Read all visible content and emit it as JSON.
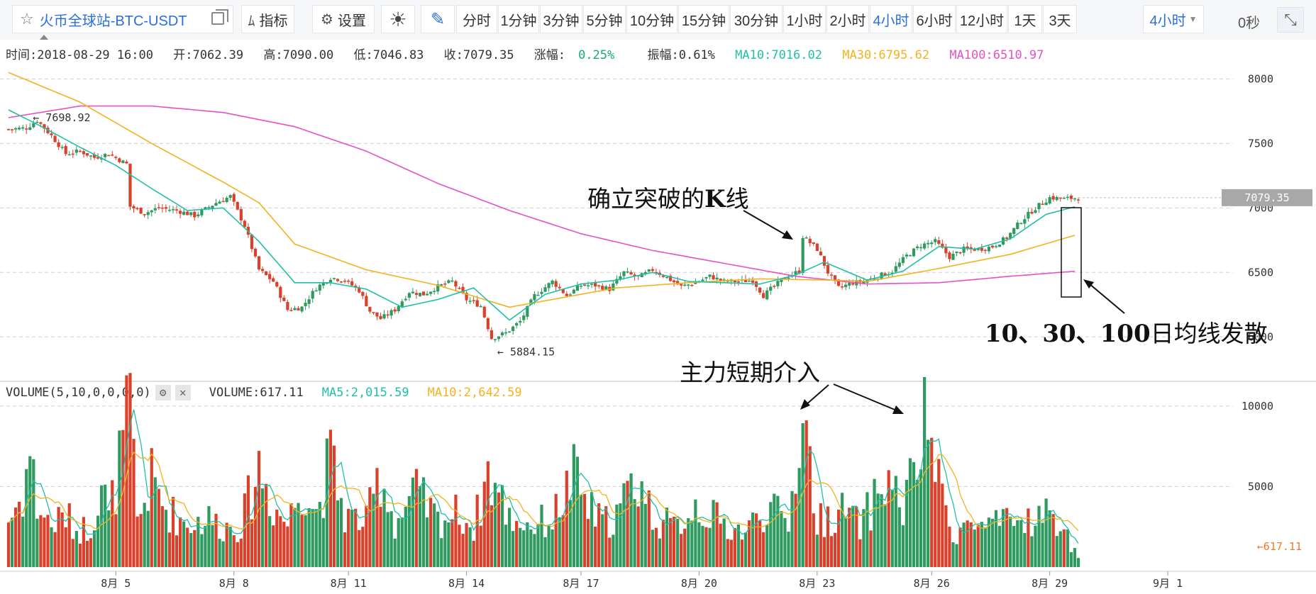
{
  "toolbar": {
    "symbol": "火币全球站-BTC-USDT",
    "indicator_label": "指标",
    "settings_label": "设置",
    "intervals": [
      "分时",
      "1分钟",
      "3分钟",
      "5分钟",
      "10分钟",
      "15分钟",
      "30分钟",
      "1小时",
      "2小时",
      "4小时",
      "6小时",
      "12小时",
      "1天",
      "3天"
    ],
    "active_interval": "4小时",
    "interval_select": "4小时",
    "countdown": "0秒"
  },
  "info": {
    "time": "时间:2018-08-29 16:00",
    "open": "开:7062.39",
    "high": "高:7090.00",
    "low": "低:7046.83",
    "close": "收:7079.35",
    "change_label": "涨幅:",
    "change_value": "0.25%",
    "amplitude": "振幅:0.61%",
    "ma10": "MA10:7016.02",
    "ma30": "MA30:6795.62",
    "ma100": "MA100:6510.97"
  },
  "volume_info": {
    "title": "VOLUME(5,10,0,0,0,0)",
    "volume": "VOLUME:617.11",
    "ma5": "MA5:2,015.59",
    "ma10": "MA10:2,642.59"
  },
  "colors": {
    "up": "#2e9a5f",
    "down": "#d9412b",
    "ma10": "#20c0a8",
    "ma30": "#f4b21f",
    "ma100": "#e452c7",
    "accent": "#2a6fdb"
  },
  "chart_data": {
    "type": "candlestick",
    "price_axis": {
      "ticks": [
        "8000",
        "7500",
        "7000",
        "6500",
        "6000"
      ],
      "ylim": [
        5820,
        8090
      ]
    },
    "volume_axis": {
      "ticks": [
        "10000",
        "5000"
      ],
      "ylim": [
        0,
        10300
      ]
    },
    "x_ticks": [
      "8月 5",
      "8月 8",
      "8月 11",
      "8月 14",
      "8月 17",
      "8月 20",
      "8月 23",
      "8月 26",
      "8月 29",
      "9月 1"
    ],
    "current_price_label": "7079.35",
    "current_volume_label": "617.11",
    "max_label": "7698.92",
    "min_label": "5884.15",
    "annotations": [
      {
        "text_prefix": "确立突破的",
        "text_bold": "K",
        "text_suffix": "线"
      },
      {
        "text": "主力短期介入"
      },
      {
        "text_bold": "10、30、100",
        "text_suffix": "日均线发散"
      }
    ],
    "price_control_points": [
      [
        0,
        7610
      ],
      [
        5,
        7620
      ],
      [
        8,
        7680
      ],
      [
        12,
        7560
      ],
      [
        16,
        7420
      ],
      [
        20,
        7440
      ],
      [
        24,
        7390
      ],
      [
        28,
        7420
      ],
      [
        33,
        7340
      ],
      [
        34,
        7010
      ],
      [
        38,
        6960
      ],
      [
        42,
        7000
      ],
      [
        47,
        6980
      ],
      [
        52,
        6940
      ],
      [
        58,
        7040
      ],
      [
        62,
        7090
      ],
      [
        66,
        6860
      ],
      [
        70,
        6520
      ],
      [
        74,
        6430
      ],
      [
        78,
        6210
      ],
      [
        82,
        6230
      ],
      [
        86,
        6380
      ],
      [
        90,
        6460
      ],
      [
        94,
        6440
      ],
      [
        98,
        6360
      ],
      [
        101,
        6200
      ],
      [
        104,
        6140
      ],
      [
        108,
        6210
      ],
      [
        112,
        6350
      ],
      [
        116,
        6330
      ],
      [
        120,
        6390
      ],
      [
        124,
        6430
      ],
      [
        128,
        6290
      ],
      [
        132,
        6240
      ],
      [
        135,
        5990
      ],
      [
        139,
        6030
      ],
      [
        143,
        6120
      ],
      [
        147,
        6320
      ],
      [
        152,
        6430
      ],
      [
        156,
        6320
      ],
      [
        160,
        6400
      ],
      [
        164,
        6400
      ],
      [
        168,
        6370
      ],
      [
        172,
        6500
      ],
      [
        176,
        6460
      ],
      [
        180,
        6520
      ],
      [
        184,
        6460
      ],
      [
        188,
        6390
      ],
      [
        192,
        6420
      ],
      [
        196,
        6470
      ],
      [
        200,
        6430
      ],
      [
        204,
        6430
      ],
      [
        208,
        6440
      ],
      [
        211,
        6320
      ],
      [
        213,
        6370
      ],
      [
        217,
        6460
      ],
      [
        221,
        6510
      ],
      [
        222,
        6780
      ],
      [
        226,
        6680
      ],
      [
        229,
        6500
      ],
      [
        232,
        6380
      ],
      [
        236,
        6420
      ],
      [
        239,
        6430
      ],
      [
        243,
        6470
      ],
      [
        247,
        6510
      ],
      [
        251,
        6630
      ],
      [
        255,
        6710
      ],
      [
        259,
        6740
      ],
      [
        263,
        6620
      ],
      [
        267,
        6680
      ],
      [
        271,
        6680
      ],
      [
        275,
        6700
      ],
      [
        279,
        6770
      ],
      [
        283,
        6900
      ],
      [
        287,
        7000
      ],
      [
        291,
        7080
      ],
      [
        295,
        7070
      ],
      [
        299,
        7080
      ]
    ],
    "ma10_control": [
      [
        0,
        7760
      ],
      [
        10,
        7620
      ],
      [
        20,
        7470
      ],
      [
        30,
        7330
      ],
      [
        40,
        7150
      ],
      [
        50,
        6980
      ],
      [
        60,
        7000
      ],
      [
        70,
        6740
      ],
      [
        80,
        6420
      ],
      [
        90,
        6420
      ],
      [
        100,
        6370
      ],
      [
        110,
        6230
      ],
      [
        120,
        6290
      ],
      [
        130,
        6380
      ],
      [
        140,
        6130
      ],
      [
        150,
        6330
      ],
      [
        160,
        6410
      ],
      [
        170,
        6440
      ],
      [
        180,
        6500
      ],
      [
        190,
        6430
      ],
      [
        200,
        6420
      ],
      [
        210,
        6410
      ],
      [
        220,
        6480
      ],
      [
        228,
        6580
      ],
      [
        240,
        6440
      ],
      [
        250,
        6510
      ],
      [
        260,
        6700
      ],
      [
        270,
        6680
      ],
      [
        280,
        6760
      ],
      [
        290,
        6950
      ],
      [
        299,
        7016
      ]
    ],
    "ma30_control": [
      [
        0,
        8050
      ],
      [
        20,
        7820
      ],
      [
        40,
        7500
      ],
      [
        60,
        7200
      ],
      [
        70,
        7040
      ],
      [
        80,
        6720
      ],
      [
        100,
        6520
      ],
      [
        120,
        6400
      ],
      [
        140,
        6230
      ],
      [
        150,
        6280
      ],
      [
        170,
        6380
      ],
      [
        190,
        6420
      ],
      [
        210,
        6450
      ],
      [
        230,
        6440
      ],
      [
        240,
        6430
      ],
      [
        260,
        6530
      ],
      [
        280,
        6640
      ],
      [
        299,
        6796
      ]
    ],
    "ma100_control": [
      [
        0,
        7700
      ],
      [
        20,
        7790
      ],
      [
        40,
        7790
      ],
      [
        60,
        7740
      ],
      [
        80,
        7630
      ],
      [
        100,
        7440
      ],
      [
        120,
        7190
      ],
      [
        140,
        6980
      ],
      [
        160,
        6800
      ],
      [
        180,
        6670
      ],
      [
        200,
        6570
      ],
      [
        220,
        6470
      ],
      [
        240,
        6410
      ],
      [
        260,
        6420
      ],
      [
        280,
        6470
      ],
      [
        299,
        6511
      ]
    ],
    "volume_control": [
      [
        0,
        2900
      ],
      [
        4,
        4500
      ],
      [
        6,
        7200
      ],
      [
        8,
        3800
      ],
      [
        12,
        2600
      ],
      [
        16,
        3200
      ],
      [
        19,
        2300
      ],
      [
        23,
        2500
      ],
      [
        26,
        5500
      ],
      [
        28,
        3000
      ],
      [
        34,
        9800
      ],
      [
        36,
        2800
      ],
      [
        40,
        5400
      ],
      [
        44,
        3600
      ],
      [
        50,
        2700
      ],
      [
        56,
        3000
      ],
      [
        60,
        2500
      ],
      [
        65,
        2600
      ],
      [
        70,
        6300
      ],
      [
        74,
        3800
      ],
      [
        78,
        2700
      ],
      [
        82,
        5300
      ],
      [
        86,
        3400
      ],
      [
        90,
        6700
      ],
      [
        94,
        3200
      ],
      [
        100,
        2800
      ],
      [
        104,
        5900
      ],
      [
        108,
        2700
      ],
      [
        114,
        4600
      ],
      [
        120,
        2900
      ],
      [
        126,
        3400
      ],
      [
        130,
        2400
      ],
      [
        134,
        5900
      ],
      [
        140,
        3100
      ],
      [
        146,
        2600
      ],
      [
        152,
        3000
      ],
      [
        158,
        5600
      ],
      [
        162,
        3700
      ],
      [
        166,
        2700
      ],
      [
        170,
        3300
      ],
      [
        176,
        5600
      ],
      [
        180,
        3200
      ],
      [
        186,
        2400
      ],
      [
        192,
        3900
      ],
      [
        200,
        2600
      ],
      [
        206,
        2200
      ],
      [
        212,
        3800
      ],
      [
        218,
        2600
      ],
      [
        222,
        10000
      ],
      [
        226,
        2800
      ],
      [
        230,
        3200
      ],
      [
        234,
        3500
      ],
      [
        238,
        2500
      ],
      [
        242,
        4200
      ],
      [
        246,
        5500
      ],
      [
        250,
        3600
      ],
      [
        254,
        6600
      ],
      [
        257,
        9400
      ],
      [
        260,
        4900
      ],
      [
        264,
        2200
      ],
      [
        268,
        2600
      ],
      [
        274,
        2500
      ],
      [
        280,
        2700
      ],
      [
        286,
        3000
      ],
      [
        292,
        3300
      ],
      [
        296,
        1800
      ],
      [
        299,
        617
      ]
    ]
  }
}
